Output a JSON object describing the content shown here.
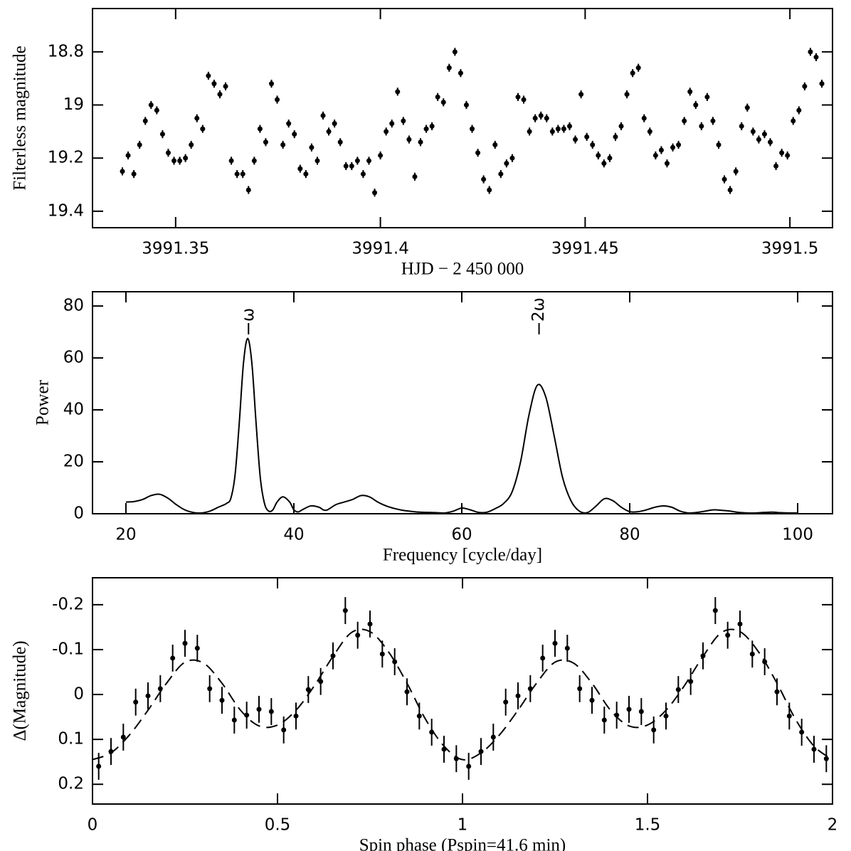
{
  "chart_data": [
    {
      "type": "scatter",
      "xlabel": "HJD − 2 450 000",
      "ylabel": "Filterless magnitude",
      "xlim": [
        3991.3297,
        3991.5104
      ],
      "ylim": [
        19.462,
        18.637
      ],
      "xticks": [
        3991.35,
        3991.4,
        3991.45,
        3991.5
      ],
      "yticks": [
        18.8,
        19,
        19.2,
        19.4
      ],
      "color": "#000000",
      "yerr": 0.015,
      "x": [
        3991.337,
        3991.3384,
        3991.3398,
        3991.3412,
        3991.3426,
        3991.344,
        3991.3454,
        3991.3468,
        3991.3482,
        3991.3496,
        3991.351,
        3991.3524,
        3991.3538,
        3991.3552,
        3991.3566,
        3991.358,
        3991.3594,
        3991.3608,
        3991.3622,
        3991.3636,
        3991.365,
        3991.3664,
        3991.3678,
        3991.3692,
        3991.3706,
        3991.372,
        3991.3734,
        3991.3748,
        3991.3762,
        3991.3776,
        3991.379,
        3991.3804,
        3991.3818,
        3991.3832,
        3991.3846,
        3991.386,
        3991.3874,
        3991.3888,
        3991.3902,
        3991.3916,
        3991.393,
        3991.3944,
        3991.3958,
        3991.3972,
        3991.3986,
        3991.4,
        3991.4014,
        3991.4028,
        3991.4042,
        3991.4056,
        3991.407,
        3991.4084,
        3991.4098,
        3991.4112,
        3991.4126,
        3991.414,
        3991.4154,
        3991.4168,
        3991.4182,
        3991.4196,
        3991.421,
        3991.4224,
        3991.4238,
        3991.4252,
        3991.4266,
        3991.428,
        3991.4294,
        3991.4308,
        3991.4322,
        3991.4336,
        3991.435,
        3991.4364,
        3991.4378,
        3991.4392,
        3991.4406,
        3991.442,
        3991.4434,
        3991.4448,
        3991.4462,
        3991.4476,
        3991.449,
        3991.4504,
        3991.4518,
        3991.4532,
        3991.4546,
        3991.456,
        3991.4574,
        3991.4588,
        3991.4602,
        3991.4616,
        3991.463,
        3991.4644,
        3991.4658,
        3991.4672,
        3991.4686,
        3991.47,
        3991.4714,
        3991.4728,
        3991.4742,
        3991.4756,
        3991.477,
        3991.4784,
        3991.4798,
        3991.4812,
        3991.4826,
        3991.484,
        3991.4854,
        3991.4868,
        3991.4882,
        3991.4896,
        3991.491,
        3991.4924,
        3991.4938,
        3991.4952,
        3991.4966,
        3991.498,
        3991.4994,
        3991.5008,
        3991.5022,
        3991.5036,
        3991.505,
        3991.5064,
        3991.5078
      ],
      "values": [
        19.25,
        19.19,
        19.26,
        19.15,
        19.06,
        19.0,
        19.02,
        19.11,
        19.18,
        19.21,
        19.21,
        19.2,
        19.15,
        19.05,
        19.09,
        18.89,
        18.92,
        18.96,
        18.93,
        19.21,
        19.26,
        19.26,
        19.32,
        19.21,
        19.09,
        19.14,
        18.92,
        18.98,
        19.15,
        19.07,
        19.11,
        19.24,
        19.26,
        19.16,
        19.21,
        19.04,
        19.1,
        19.07,
        19.14,
        19.23,
        19.23,
        19.21,
        19.26,
        19.21,
        19.33,
        19.19,
        19.1,
        19.07,
        18.95,
        19.06,
        19.13,
        19.27,
        19.14,
        19.09,
        19.08,
        18.97,
        18.99,
        18.86,
        18.8,
        18.88,
        19.0,
        19.09,
        19.18,
        19.28,
        19.32,
        19.15,
        19.26,
        19.22,
        19.2,
        18.97,
        18.98,
        19.1,
        19.05,
        19.04,
        19.05,
        19.1,
        19.09,
        19.09,
        19.08,
        19.13,
        18.96,
        19.12,
        19.15,
        19.19,
        19.22,
        19.2,
        19.12,
        19.08,
        18.96,
        18.88,
        18.86,
        19.05,
        19.1,
        19.19,
        19.17,
        19.22,
        19.16,
        19.15,
        19.06,
        18.95,
        19.0,
        19.08,
        18.97,
        19.06,
        19.15,
        19.28,
        19.32,
        19.25,
        19.08,
        19.01,
        19.1,
        19.13,
        19.11,
        19.14,
        19.23,
        19.18,
        19.19,
        19.06,
        19.02,
        18.93,
        18.8,
        18.82,
        18.92
      ]
    },
    {
      "type": "line",
      "xlabel": "Frequency [cycle/day]",
      "ylabel": "Power",
      "xlim": [
        16.02,
        104.15
      ],
      "ylim": [
        0,
        85.5
      ],
      "xticks": [
        20,
        40,
        60,
        80,
        100
      ],
      "yticks": [
        0,
        20,
        40,
        60,
        80
      ],
      "color": "#000000",
      "x": [
        20,
        21,
        22,
        23,
        24,
        25,
        26,
        27,
        28,
        29,
        30,
        31,
        32,
        32.5,
        33,
        33.5,
        34,
        34.5,
        35,
        35.5,
        36,
        36.5,
        37,
        37.5,
        38,
        38.7,
        39.5,
        40,
        40.5,
        41,
        42,
        43,
        43.5,
        44,
        45,
        46,
        47,
        48,
        49,
        50,
        51,
        52,
        53,
        54,
        55,
        56,
        57,
        58,
        59,
        60,
        61,
        62,
        63,
        64,
        65,
        66,
        67,
        68,
        69,
        70,
        71,
        72,
        73,
        74,
        75,
        76,
        77,
        78,
        79,
        80,
        81,
        82,
        83,
        84,
        85,
        86,
        87,
        88,
        89,
        90,
        91,
        92,
        93,
        94,
        95,
        96,
        97,
        98,
        99,
        100
      ],
      "values": [
        4.5,
        4.7,
        5.5,
        7,
        7.5,
        6,
        3.5,
        1.5,
        0.5,
        0.3,
        1,
        2.5,
        4,
        6,
        15,
        35,
        58,
        67.5,
        58,
        35,
        14,
        4,
        1,
        1.5,
        4.5,
        6.5,
        4.5,
        1.5,
        0.7,
        1.5,
        3,
        2.5,
        1.5,
        1.5,
        3.5,
        4.5,
        5.5,
        7,
        6.5,
        4.5,
        3,
        2,
        1.3,
        0.9,
        0.6,
        0.5,
        0.4,
        0.3,
        1,
        2.2,
        1.5,
        0.5,
        0.6,
        2,
        4,
        8.5,
        20,
        38,
        49.5,
        45,
        30,
        14,
        5,
        1,
        0.5,
        3,
        5.8,
        5,
        2.5,
        0.8,
        0.8,
        1.5,
        2.5,
        3,
        2.5,
        1,
        0.3,
        0.5,
        1,
        1.5,
        1.3,
        1,
        0.5,
        0.3,
        0.3,
        0.5,
        0.6,
        0.4,
        0.3,
        0.3
      ],
      "annotations": [
        {
          "text": "ω",
          "x": 34.6
        },
        {
          "text": "2ω",
          "x": 69.2
        }
      ]
    },
    {
      "type": "scatter",
      "xlabel": "Spin phase (Pspin=41.6 min)",
      "ylabel": "Δ(Magnitude)",
      "xlim": [
        0,
        2
      ],
      "ylim": [
        0.244,
        -0.26
      ],
      "xticks": [
        0,
        0.5,
        1,
        1.5,
        2
      ],
      "yticks": [
        -0.2,
        -0.1,
        0,
        0.1,
        0.2
      ],
      "color": "#000000",
      "yerr": 0.03,
      "x": [
        0.0167,
        0.05,
        0.0833,
        0.1167,
        0.15,
        0.1833,
        0.2167,
        0.25,
        0.2833,
        0.3167,
        0.35,
        0.3833,
        0.4167,
        0.45,
        0.4833,
        0.5167,
        0.55,
        0.5833,
        0.6167,
        0.65,
        0.6833,
        0.7167,
        0.75,
        0.7833,
        0.8167,
        0.85,
        0.8833,
        0.9167,
        0.95,
        0.9833,
        1.0167,
        1.05,
        1.0833,
        1.1167,
        1.15,
        1.1833,
        1.2167,
        1.25,
        1.2833,
        1.3167,
        1.35,
        1.3833,
        1.4167,
        1.45,
        1.4833,
        1.5167,
        1.55,
        1.5833,
        1.6167,
        1.65,
        1.6833,
        1.7167,
        1.75,
        1.7833,
        1.8167,
        1.85,
        1.8833,
        1.9167,
        1.95,
        1.9833
      ],
      "values": [
        0.16,
        0.127,
        0.095,
        0.017,
        0.003,
        -0.013,
        -0.081,
        -0.114,
        -0.103,
        -0.013,
        0.013,
        0.057,
        0.046,
        0.033,
        0.038,
        0.079,
        0.048,
        -0.011,
        -0.029,
        -0.086,
        -0.187,
        -0.132,
        -0.157,
        -0.09,
        -0.073,
        -0.006,
        0.048,
        0.084,
        0.122,
        0.143,
        0.16,
        0.127,
        0.095,
        0.017,
        0.003,
        -0.013,
        -0.081,
        -0.114,
        -0.103,
        -0.013,
        0.013,
        0.057,
        0.046,
        0.033,
        0.038,
        0.079,
        0.048,
        -0.011,
        -0.029,
        -0.086,
        -0.187,
        -0.132,
        -0.157,
        -0.09,
        -0.073,
        -0.006,
        0.048,
        0.084,
        0.122,
        0.143
      ],
      "model": {
        "line_style": "dashed",
        "x": [
          0,
          0.05,
          0.1,
          0.15,
          0.2,
          0.25,
          0.3,
          0.35,
          0.4,
          0.45,
          0.5,
          0.55,
          0.6,
          0.65,
          0.7,
          0.75,
          0.8,
          0.85,
          0.9,
          0.95,
          1,
          1.05,
          1.1,
          1.15,
          1.2,
          1.25,
          1.3,
          1.35,
          1.4,
          1.45,
          1.5,
          1.55,
          1.6,
          1.65,
          1.7,
          1.75,
          1.8,
          1.85,
          1.9,
          1.95,
          2
        ],
        "values": [
          0.145,
          0.13,
          0.09,
          0.035,
          -0.025,
          -0.072,
          -0.07,
          -0.025,
          0.035,
          0.07,
          0.068,
          0.035,
          -0.02,
          -0.085,
          -0.138,
          -0.14,
          -0.095,
          -0.025,
          0.055,
          0.115,
          0.145,
          0.13,
          0.09,
          0.035,
          -0.025,
          -0.072,
          -0.07,
          -0.025,
          0.035,
          0.07,
          0.068,
          0.035,
          -0.02,
          -0.085,
          -0.138,
          -0.14,
          -0.095,
          -0.025,
          0.055,
          0.115,
          0.145
        ]
      }
    }
  ]
}
